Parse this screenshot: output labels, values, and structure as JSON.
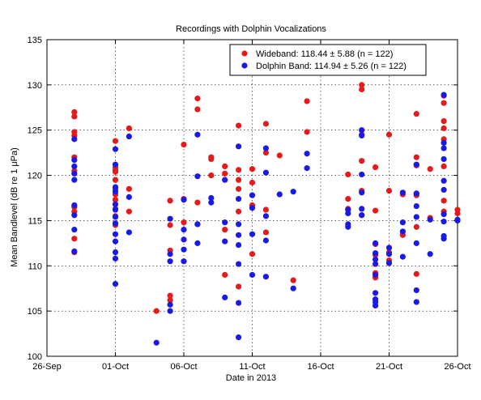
{
  "chart_data": {
    "type": "scatter",
    "title": "Recordings with Dolphin Vocalizations",
    "xlabel": "Date in 2013",
    "ylabel": "Mean Bandlevel (dB re 1 μPa)",
    "xlim": [
      "2013-09-26",
      "2013-10-26"
    ],
    "ylim": [
      100,
      135
    ],
    "x_ticks": [
      {
        "date": "2013-09-26",
        "label": "26-Sep"
      },
      {
        "date": "2013-10-01",
        "label": "01-Oct"
      },
      {
        "date": "2013-10-06",
        "label": "06-Oct"
      },
      {
        "date": "2013-10-11",
        "label": "11-Oct"
      },
      {
        "date": "2013-10-16",
        "label": "16-Oct"
      },
      {
        "date": "2013-10-21",
        "label": "21-Oct"
      },
      {
        "date": "2013-10-26",
        "label": "26-Oct"
      }
    ],
    "y_ticks": [
      100,
      105,
      110,
      115,
      120,
      125,
      130,
      135
    ],
    "grid": true,
    "legend_position": "top-right",
    "legend": [
      "Wideband: 118.44 ± 5.88 (n = 122)",
      "Dolphin Band: 114.94 ± 5.26 (n = 122)"
    ],
    "series": [
      {
        "name": "Wideband",
        "color": "#e61a1a",
        "points": [
          [
            "2013-09-28",
            127
          ],
          [
            "2013-09-28",
            126.5
          ],
          [
            "2013-09-28",
            124.8
          ],
          [
            "2013-09-28",
            124.4
          ],
          [
            "2013-09-28",
            122
          ],
          [
            "2013-09-28",
            120.5
          ],
          [
            "2013-09-28",
            116.5
          ],
          [
            "2013-09-28",
            116
          ],
          [
            "2013-09-28",
            113
          ],
          [
            "2013-09-28",
            111.5
          ],
          [
            "2013-10-01",
            123.8
          ],
          [
            "2013-10-01",
            120.6
          ],
          [
            "2013-10-01",
            120.9
          ],
          [
            "2013-10-01",
            120.4
          ],
          [
            "2013-10-01",
            119.5
          ],
          [
            "2013-10-01",
            118.5
          ],
          [
            "2013-10-01",
            117.9
          ],
          [
            "2013-10-01",
            117.3
          ],
          [
            "2013-10-01",
            116.3
          ],
          [
            "2013-10-01",
            115.5
          ],
          [
            "2013-10-01",
            114.5
          ],
          [
            "2013-10-02",
            125.2
          ],
          [
            "2013-10-02",
            118.5
          ],
          [
            "2013-10-02",
            116
          ],
          [
            "2013-10-04",
            105
          ],
          [
            "2013-10-05",
            117.2
          ],
          [
            "2013-10-05",
            114.5
          ],
          [
            "2013-10-05",
            111.7
          ],
          [
            "2013-10-05",
            106.7
          ],
          [
            "2013-10-05",
            106.2
          ],
          [
            "2013-10-06",
            123.4
          ],
          [
            "2013-10-06",
            117.4
          ],
          [
            "2013-10-06",
            114.8
          ],
          [
            "2013-10-07",
            128.5
          ],
          [
            "2013-10-07",
            127.3
          ],
          [
            "2013-10-07",
            117
          ],
          [
            "2013-10-07",
            114.6
          ],
          [
            "2013-10-08",
            122
          ],
          [
            "2013-10-08",
            121.8
          ],
          [
            "2013-10-08",
            120
          ],
          [
            "2013-10-09",
            121
          ],
          [
            "2013-10-09",
            120.2
          ],
          [
            "2013-10-09",
            114
          ],
          [
            "2013-10-09",
            109
          ],
          [
            "2013-10-10",
            125.5
          ],
          [
            "2013-10-10",
            120.6
          ],
          [
            "2013-10-10",
            119.5
          ],
          [
            "2013-10-10",
            118.5
          ],
          [
            "2013-10-10",
            116
          ],
          [
            "2013-10-10",
            107.7
          ],
          [
            "2013-10-11",
            120.7
          ],
          [
            "2013-10-11",
            119.2
          ],
          [
            "2013-10-11",
            116.7
          ],
          [
            "2013-10-11",
            111.3
          ],
          [
            "2013-10-12",
            125.7
          ],
          [
            "2013-10-12",
            122.5
          ],
          [
            "2013-10-12",
            116.2
          ],
          [
            "2013-10-12",
            113.7
          ],
          [
            "2013-10-13",
            122.2
          ],
          [
            "2013-10-14",
            108.4
          ],
          [
            "2013-10-15",
            128.2
          ],
          [
            "2013-10-15",
            124.8
          ],
          [
            "2013-10-18",
            120.1
          ],
          [
            "2013-10-18",
            117.4
          ],
          [
            "2013-10-18",
            116.3
          ],
          [
            "2013-10-19",
            130
          ],
          [
            "2013-10-19",
            129.5
          ],
          [
            "2013-10-19",
            124.5
          ],
          [
            "2013-10-19",
            121.6
          ],
          [
            "2013-10-19",
            118.3
          ],
          [
            "2013-10-19",
            115.6
          ],
          [
            "2013-10-20",
            120.9
          ],
          [
            "2013-10-20",
            116.1
          ],
          [
            "2013-10-20",
            112.4
          ],
          [
            "2013-10-20",
            111.2
          ],
          [
            "2013-10-20",
            109.2
          ],
          [
            "2013-10-20",
            108.7
          ],
          [
            "2013-10-21",
            124.5
          ],
          [
            "2013-10-21",
            118.3
          ],
          [
            "2013-10-21",
            111.5
          ],
          [
            "2013-10-21",
            110.6
          ],
          [
            "2013-10-22",
            117.9
          ],
          [
            "2013-10-22",
            113.4
          ],
          [
            "2013-10-23",
            126.8
          ],
          [
            "2013-10-23",
            122
          ],
          [
            "2013-10-23",
            121.1
          ],
          [
            "2013-10-23",
            118
          ],
          [
            "2013-10-23",
            117.8
          ],
          [
            "2013-10-23",
            114.3
          ],
          [
            "2013-10-23",
            109.1
          ],
          [
            "2013-10-24",
            120.7
          ],
          [
            "2013-10-24",
            115.3
          ],
          [
            "2013-10-25",
            128.8
          ],
          [
            "2013-10-25",
            128
          ],
          [
            "2013-10-25",
            126
          ],
          [
            "2013-10-25",
            125.2
          ],
          [
            "2013-10-25",
            124
          ],
          [
            "2013-10-25",
            121
          ],
          [
            "2013-10-25",
            117.2
          ],
          [
            "2013-10-25",
            116
          ],
          [
            "2013-10-26",
            116.2
          ],
          [
            "2013-10-26",
            115.8
          ]
        ]
      },
      {
        "name": "Dolphin Band",
        "color": "#1a1ae6",
        "points": [
          [
            "2013-09-28",
            124
          ],
          [
            "2013-09-28",
            121.7
          ],
          [
            "2013-09-28",
            121
          ],
          [
            "2013-09-28",
            120.2
          ],
          [
            "2013-09-28",
            119.5
          ],
          [
            "2013-09-28",
            116.7
          ],
          [
            "2013-09-28",
            115.6
          ],
          [
            "2013-09-28",
            114
          ],
          [
            "2013-09-28",
            111.6
          ],
          [
            "2013-10-01",
            122.9
          ],
          [
            "2013-10-01",
            121.2
          ],
          [
            "2013-10-01",
            118.7
          ],
          [
            "2013-10-01",
            118.2
          ],
          [
            "2013-10-01",
            116.8
          ],
          [
            "2013-10-01",
            116.2
          ],
          [
            "2013-10-01",
            115.4
          ],
          [
            "2013-10-01",
            114.7
          ],
          [
            "2013-10-01",
            113.5
          ],
          [
            "2013-10-01",
            112.7
          ],
          [
            "2013-10-01",
            111.5
          ],
          [
            "2013-10-01",
            110.8
          ],
          [
            "2013-10-01",
            108
          ],
          [
            "2013-10-02",
            124.3
          ],
          [
            "2013-10-02",
            117.6
          ],
          [
            "2013-10-02",
            113.7
          ],
          [
            "2013-10-04",
            101.5
          ],
          [
            "2013-10-05",
            115.2
          ],
          [
            "2013-10-05",
            111.3
          ],
          [
            "2013-10-05",
            110.5
          ],
          [
            "2013-10-05",
            105.7
          ],
          [
            "2013-10-05",
            105
          ],
          [
            "2013-10-06",
            117.3
          ],
          [
            "2013-10-06",
            114
          ],
          [
            "2013-10-06",
            112.9
          ],
          [
            "2013-10-06",
            111.8
          ],
          [
            "2013-10-06",
            110.5
          ],
          [
            "2013-10-07",
            124.5
          ],
          [
            "2013-10-07",
            119.9
          ],
          [
            "2013-10-07",
            114.6
          ],
          [
            "2013-10-07",
            112.5
          ],
          [
            "2013-10-08",
            117.5
          ],
          [
            "2013-10-08",
            117
          ],
          [
            "2013-10-09",
            119.5
          ],
          [
            "2013-10-09",
            114.8
          ],
          [
            "2013-10-09",
            112.7
          ],
          [
            "2013-10-09",
            106.5
          ],
          [
            "2013-10-10",
            123.2
          ],
          [
            "2013-10-10",
            117.4
          ],
          [
            "2013-10-10",
            114.6
          ],
          [
            "2013-10-10",
            113.4
          ],
          [
            "2013-10-10",
            112.3
          ],
          [
            "2013-10-10",
            110.2
          ],
          [
            "2013-10-10",
            105.9
          ],
          [
            "2013-10-10",
            102.1
          ],
          [
            "2013-10-11",
            117.8
          ],
          [
            "2013-10-11",
            116.4
          ],
          [
            "2013-10-11",
            113.5
          ],
          [
            "2013-10-11",
            109
          ],
          [
            "2013-10-12",
            123
          ],
          [
            "2013-10-12",
            120.3
          ],
          [
            "2013-10-12",
            115.5
          ],
          [
            "2013-10-12",
            112.8
          ],
          [
            "2013-10-12",
            108.8
          ],
          [
            "2013-10-13",
            117.9
          ],
          [
            "2013-10-14",
            118.2
          ],
          [
            "2013-10-14",
            107.5
          ],
          [
            "2013-10-15",
            122.4
          ],
          [
            "2013-10-15",
            120.8
          ],
          [
            "2013-10-18",
            116.2
          ],
          [
            "2013-10-18",
            115.8
          ],
          [
            "2013-10-18",
            114.6
          ],
          [
            "2013-10-18",
            114.3
          ],
          [
            "2013-10-19",
            125
          ],
          [
            "2013-10-19",
            124.4
          ],
          [
            "2013-10-19",
            120.1
          ],
          [
            "2013-10-19",
            118.1
          ],
          [
            "2013-10-19",
            116.3
          ],
          [
            "2013-10-19",
            115.6
          ],
          [
            "2013-10-20",
            112.5
          ],
          [
            "2013-10-20",
            111.4
          ],
          [
            "2013-10-20",
            110.7
          ],
          [
            "2013-10-20",
            110.2
          ],
          [
            "2013-10-20",
            109
          ],
          [
            "2013-10-20",
            107
          ],
          [
            "2013-10-20",
            106.3
          ],
          [
            "2013-10-20",
            106
          ],
          [
            "2013-10-20",
            105.6
          ],
          [
            "2013-10-21",
            112
          ],
          [
            "2013-10-21",
            111.3
          ],
          [
            "2013-10-21",
            110.3
          ],
          [
            "2013-10-22",
            118.1
          ],
          [
            "2013-10-22",
            114.8
          ],
          [
            "2013-10-22",
            113.8
          ],
          [
            "2013-10-22",
            111
          ],
          [
            "2013-10-23",
            121.2
          ],
          [
            "2013-10-23",
            118
          ],
          [
            "2013-10-23",
            116.6
          ],
          [
            "2013-10-23",
            115.4
          ],
          [
            "2013-10-23",
            112.5
          ],
          [
            "2013-10-23",
            107.3
          ],
          [
            "2013-10-23",
            106
          ],
          [
            "2013-10-24",
            115.1
          ],
          [
            "2013-10-24",
            111.3
          ],
          [
            "2013-10-25",
            128.9
          ],
          [
            "2013-10-25",
            123.6
          ],
          [
            "2013-10-25",
            123
          ],
          [
            "2013-10-25",
            121.8
          ],
          [
            "2013-10-25",
            119.4
          ],
          [
            "2013-10-25",
            118.4
          ],
          [
            "2013-10-25",
            115.7
          ],
          [
            "2013-10-25",
            114.9
          ],
          [
            "2013-10-25",
            113.3
          ],
          [
            "2013-10-25",
            113
          ],
          [
            "2013-10-26",
            115
          ],
          [
            "2013-10-26",
            115.1
          ]
        ]
      }
    ]
  }
}
